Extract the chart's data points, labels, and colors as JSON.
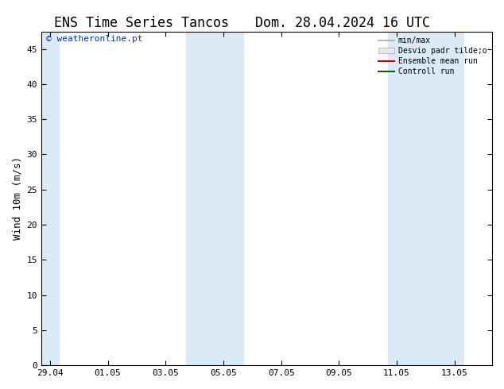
{
  "title1": "ENS Time Series Tancos",
  "title2": "Dom. 28.04.2024 16 UTC",
  "ylabel": "Wind 10m (m/s)",
  "watermark": "© weatheronline.pt",
  "ylim": [
    0,
    47.5
  ],
  "yticks": [
    0,
    5,
    10,
    15,
    20,
    25,
    30,
    35,
    40,
    45
  ],
  "xlim": [
    -0.3,
    15.3
  ],
  "xtick_positions": [
    0,
    2,
    4,
    6,
    8,
    10,
    12,
    14
  ],
  "xtick_labels": [
    "29.04",
    "01.05",
    "03.05",
    "05.05",
    "07.05",
    "09.05",
    "11.05",
    "13.05"
  ],
  "bg_color": "#ffffff",
  "plot_bg_color": "#ffffff",
  "shade_bands": [
    {
      "x_start": -0.3,
      "x_end": 0.3
    },
    {
      "x_start": 4.7,
      "x_end": 6.7
    },
    {
      "x_start": 11.7,
      "x_end": 14.3
    }
  ],
  "shade_color": "#daeaf7",
  "legend_items": [
    {
      "label": "min/max",
      "color": "#aaaaaa",
      "lw": 1.2,
      "type": "line"
    },
    {
      "label": "Desvio padr tilde;o",
      "color": "#cccccc",
      "lw": 8,
      "type": "patch"
    },
    {
      "label": "Ensemble mean run",
      "color": "#cc0000",
      "lw": 1.5,
      "type": "line"
    },
    {
      "label": "Controll run",
      "color": "#006600",
      "lw": 1.5,
      "type": "line"
    }
  ],
  "title_fontsize": 12,
  "label_fontsize": 9,
  "tick_fontsize": 8,
  "watermark_fontsize": 8,
  "watermark_color": "#0033cc",
  "tick_color": "#000000",
  "spine_color": "#000000"
}
